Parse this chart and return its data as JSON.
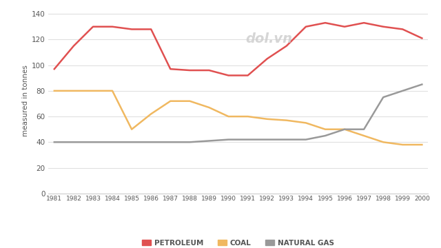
{
  "years": [
    1981,
    1982,
    1983,
    1984,
    1985,
    1986,
    1987,
    1988,
    1989,
    1990,
    1991,
    1992,
    1993,
    1994,
    1995,
    1996,
    1997,
    1998,
    1999,
    2000
  ],
  "petroleum": [
    97,
    115,
    130,
    130,
    128,
    128,
    97,
    96,
    96,
    92,
    92,
    105,
    115,
    130,
    133,
    130,
    133,
    130,
    128,
    121
  ],
  "coal": [
    80,
    80,
    80,
    80,
    50,
    62,
    72,
    72,
    67,
    60,
    60,
    58,
    57,
    55,
    50,
    50,
    45,
    40,
    38,
    38
  ],
  "natural_gas": [
    40,
    40,
    40,
    40,
    40,
    40,
    40,
    40,
    41,
    42,
    42,
    42,
    42,
    42,
    45,
    50,
    50,
    75,
    80,
    85
  ],
  "petroleum_color": "#e05050",
  "coal_color": "#f0b860",
  "natural_gas_color": "#999999",
  "ylabel": "measured in tonnes",
  "ylim": [
    0,
    145
  ],
  "yticks": [
    0,
    20,
    40,
    60,
    80,
    100,
    120,
    140
  ],
  "background_color": "#ffffff",
  "grid_color": "#e0e0e0",
  "legend_labels": [
    "PETROLEUM",
    "COAL",
    "NATURAL GAS"
  ]
}
